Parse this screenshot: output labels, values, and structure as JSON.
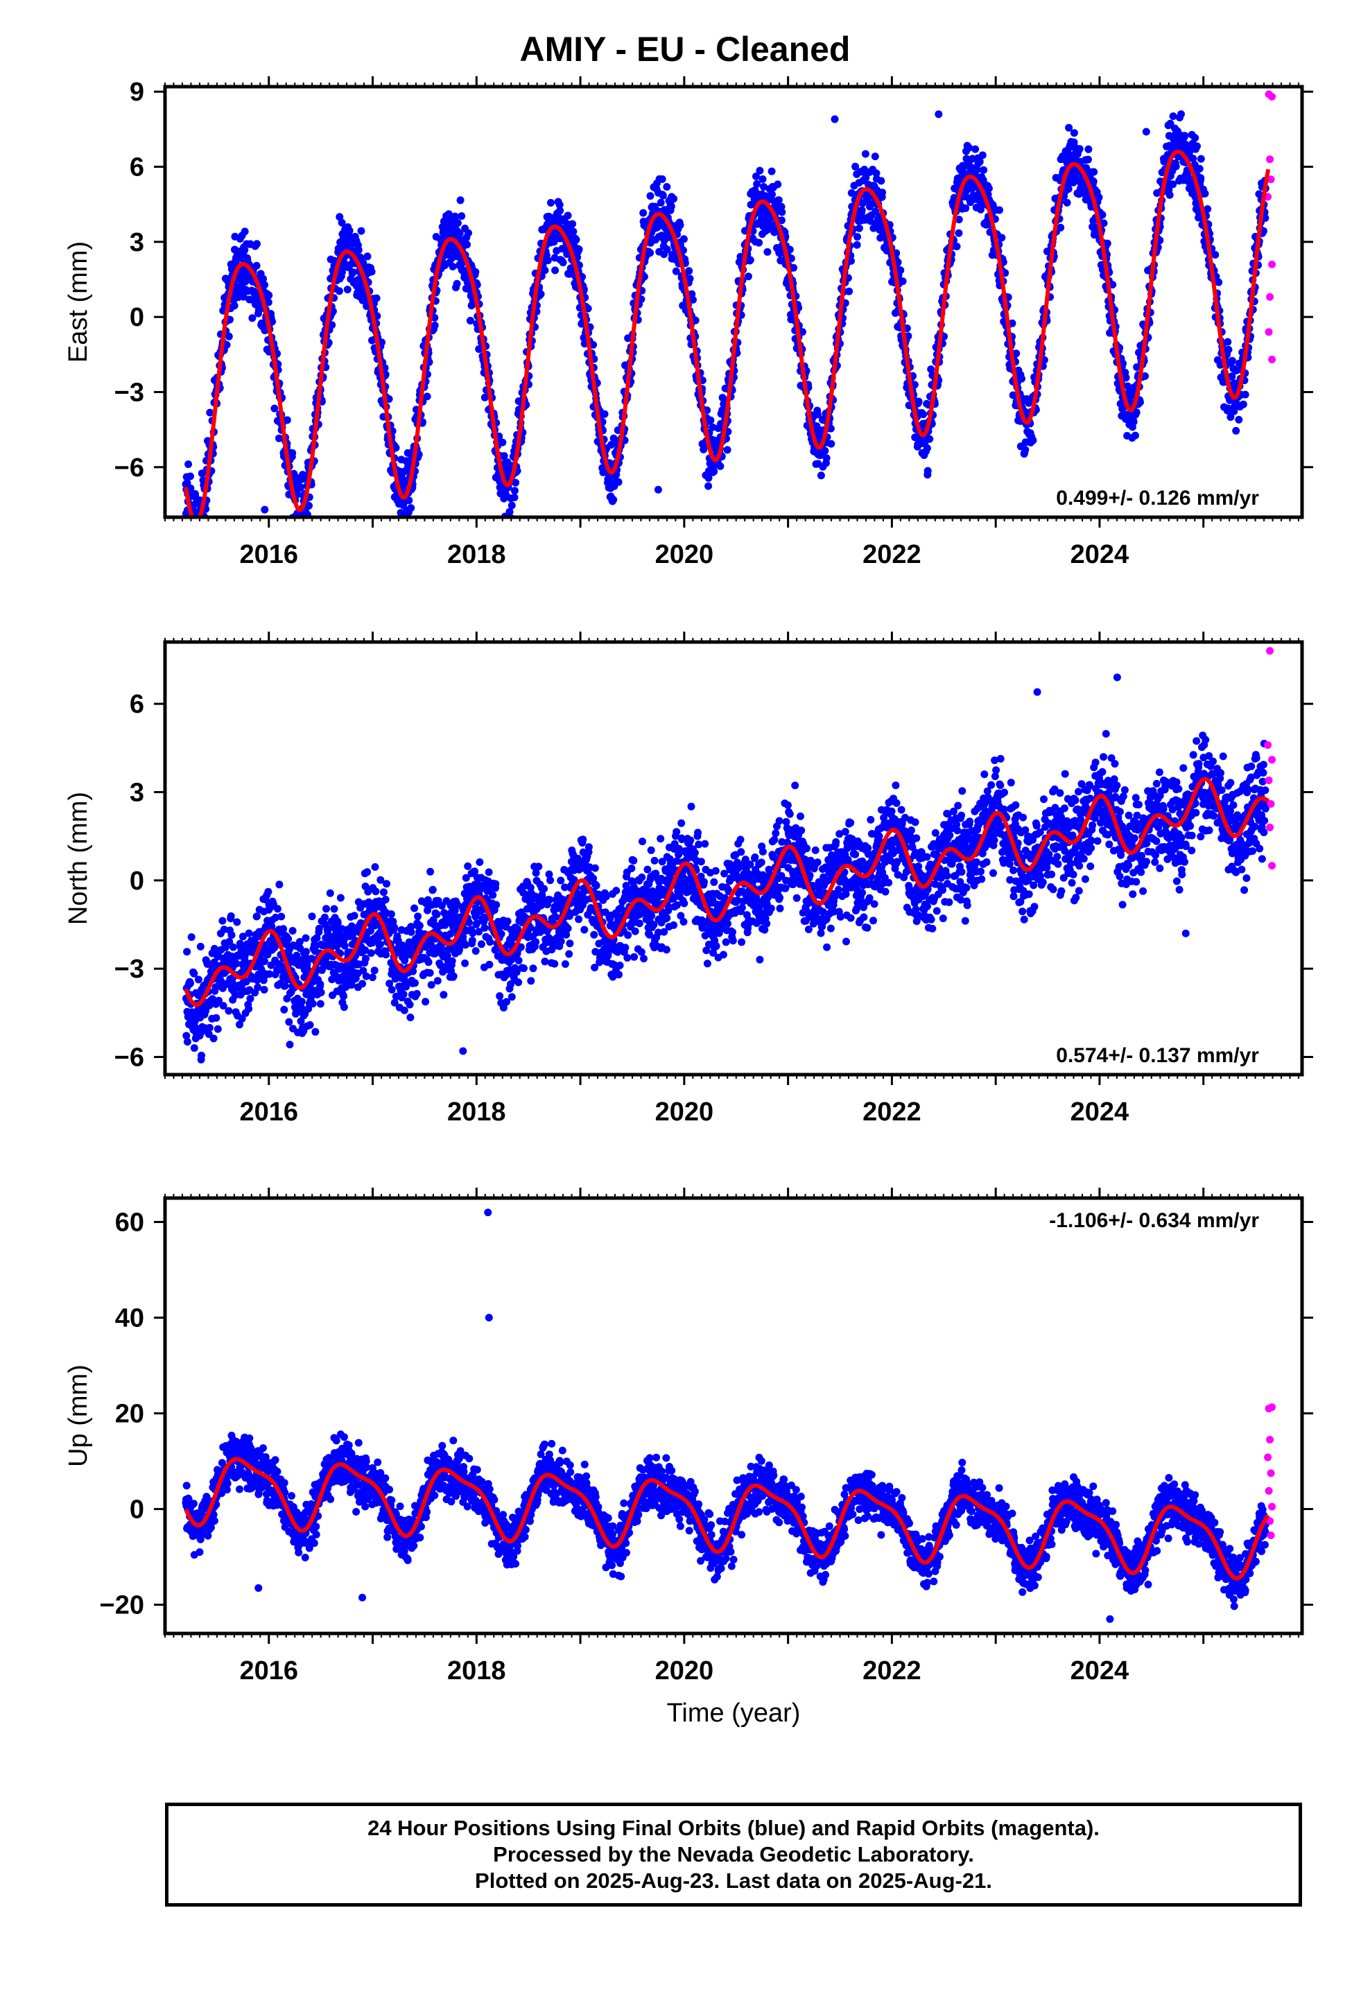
{
  "title": "AMIY  - EU - Cleaned",
  "colors": {
    "final_orbits": "#0000ff",
    "rapid_orbits": "#ff00ff",
    "model": "#ff0000",
    "frame": "#000000"
  },
  "x_axis": {
    "label": "Time (year)",
    "ticks": [
      2016,
      2018,
      2020,
      2022,
      2024
    ],
    "range": [
      2015.0,
      2025.95
    ]
  },
  "footer": {
    "line1": "24 Hour Positions Using Final Orbits (blue) and Rapid Orbits (magenta).",
    "line2": "Processed by the Nevada Geodetic Laboratory.",
    "line3": "Plotted on 2025-Aug-23. Last data on 2025-Aug-21."
  },
  "chart_data": [
    {
      "type": "scatter",
      "ylabel": "East (mm)",
      "ylim": [
        -8.0,
        9.2
      ],
      "yticks": [
        -6,
        -3,
        0,
        3,
        6,
        9
      ],
      "rate_label": "0.499+/- 0.126 mm/yr",
      "rate_label_position": "bottom-right",
      "model": {
        "start": 2015.2,
        "end": 2025.63,
        "offset": -2.5,
        "rate": 0.499,
        "annual_amp": 5.0,
        "annual_phase": 2.9,
        "semi_amp": 0.8,
        "semi_phase": 0.7,
        "noise": 0.95
      },
      "outliers": [
        {
          "x": 2015.96,
          "y": -7.7
        },
        {
          "x": 2021.45,
          "y": 7.9
        },
        {
          "x": 2022.45,
          "y": 8.1
        },
        {
          "x": 2019.75,
          "y": -6.9
        },
        {
          "x": 2024.45,
          "y": 7.4
        }
      ],
      "rapid": [
        {
          "x": 2025.63,
          "y": 8.9
        },
        {
          "x": 2025.66,
          "y": 8.8
        },
        {
          "x": 2025.64,
          "y": 6.3
        },
        {
          "x": 2025.65,
          "y": 5.5
        },
        {
          "x": 2025.62,
          "y": 4.8
        },
        {
          "x": 2025.66,
          "y": 2.1
        },
        {
          "x": 2025.64,
          "y": 0.8
        },
        {
          "x": 2025.63,
          "y": -0.6
        },
        {
          "x": 2025.66,
          "y": -1.7
        }
      ]
    },
    {
      "type": "scatter",
      "ylabel": "North (mm)",
      "ylim": [
        -6.6,
        8.1
      ],
      "yticks": [
        -6,
        -3,
        0,
        3,
        6
      ],
      "rate_label": "0.574+/- 0.137 mm/yr",
      "rate_label_position": "bottom-right",
      "model": {
        "start": 2015.2,
        "end": 2025.63,
        "offset": -3.3,
        "rate": 0.574,
        "annual_amp": 0.6,
        "annual_phase": 2.0,
        "semi_amp": 0.6,
        "semi_phase": 1.2,
        "noise": 1.15
      },
      "outliers": [
        {
          "x": 2017.87,
          "y": -5.8
        },
        {
          "x": 2024.17,
          "y": 6.9
        },
        {
          "x": 2024.83,
          "y": -1.8
        },
        {
          "x": 2023.4,
          "y": 6.4
        }
      ],
      "rapid": [
        {
          "x": 2025.64,
          "y": 7.8
        },
        {
          "x": 2025.62,
          "y": 4.6
        },
        {
          "x": 2025.66,
          "y": 4.1
        },
        {
          "x": 2025.63,
          "y": 3.4
        },
        {
          "x": 2025.65,
          "y": 2.6
        },
        {
          "x": 2025.64,
          "y": 1.8
        },
        {
          "x": 2025.66,
          "y": 0.5
        }
      ]
    },
    {
      "type": "scatter",
      "ylabel": "Up (mm)",
      "ylim": [
        -26.0,
        65.0
      ],
      "yticks": [
        -20,
        0,
        20,
        40,
        60
      ],
      "rate_label": "-1.106+/- 0.634 mm/yr",
      "rate_label_position": "top-right",
      "model": {
        "start": 2015.2,
        "end": 2025.63,
        "offset": 5.0,
        "rate": -1.106,
        "annual_amp": 6.5,
        "annual_phase": 2.9,
        "semi_amp": 2.0,
        "semi_phase": 0.4,
        "noise": 3.6
      },
      "outliers": [
        {
          "x": 2018.11,
          "y": 62.0
        },
        {
          "x": 2018.12,
          "y": 40.0
        },
        {
          "x": 2015.9,
          "y": -16.5
        },
        {
          "x": 2016.9,
          "y": -18.5
        },
        {
          "x": 2024.1,
          "y": -23.0
        }
      ],
      "rapid": [
        {
          "x": 2025.63,
          "y": 21.0
        },
        {
          "x": 2025.66,
          "y": 21.3
        },
        {
          "x": 2025.64,
          "y": 14.5
        },
        {
          "x": 2025.62,
          "y": 10.8
        },
        {
          "x": 2025.65,
          "y": 7.5
        },
        {
          "x": 2025.63,
          "y": 3.8
        },
        {
          "x": 2025.66,
          "y": 0.5
        },
        {
          "x": 2025.64,
          "y": -2.5
        },
        {
          "x": 2025.65,
          "y": -5.5
        }
      ]
    }
  ]
}
